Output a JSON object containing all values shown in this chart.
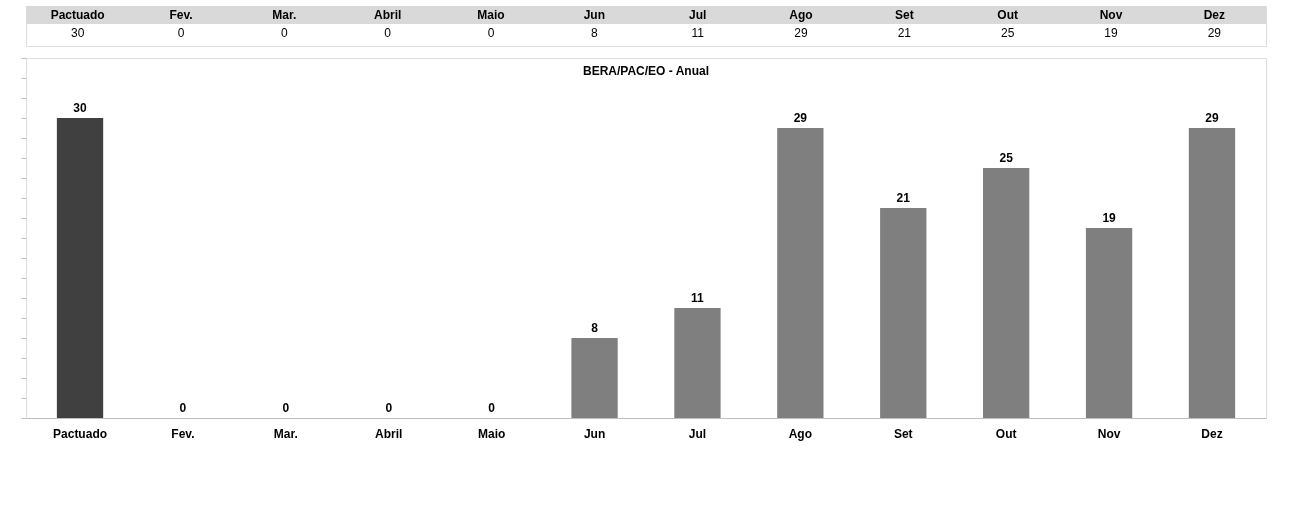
{
  "chart_data": {
    "type": "bar",
    "title": "BERA/PAC/EO - Anual",
    "categories": [
      "Pactuado",
      "Fev.",
      "Mar.",
      "Abril",
      "Maio",
      "Jun",
      "Jul",
      "Ago",
      "Set",
      "Out",
      "Nov",
      "Dez"
    ],
    "values": [
      30,
      0,
      0,
      0,
      0,
      8,
      11,
      29,
      21,
      25,
      19,
      29
    ],
    "colors": [
      "#404040",
      "#7f7f7f",
      "#7f7f7f",
      "#7f7f7f",
      "#7f7f7f",
      "#7f7f7f",
      "#7f7f7f",
      "#7f7f7f",
      "#7f7f7f",
      "#7f7f7f",
      "#7f7f7f",
      "#7f7f7f"
    ],
    "value_labels": [
      "30",
      "0",
      "0",
      "0",
      "0",
      "8",
      "11",
      "29",
      "21",
      "25",
      "19",
      "29"
    ],
    "annotations": [
      "30",
      "0",
      "0",
      "0",
      "0",
      "8",
      "11",
      "29",
      "21",
      "25",
      "19",
      "29"
    ],
    "data_labels": true,
    "tick_labels": "x",
    "grid": false
  }
}
